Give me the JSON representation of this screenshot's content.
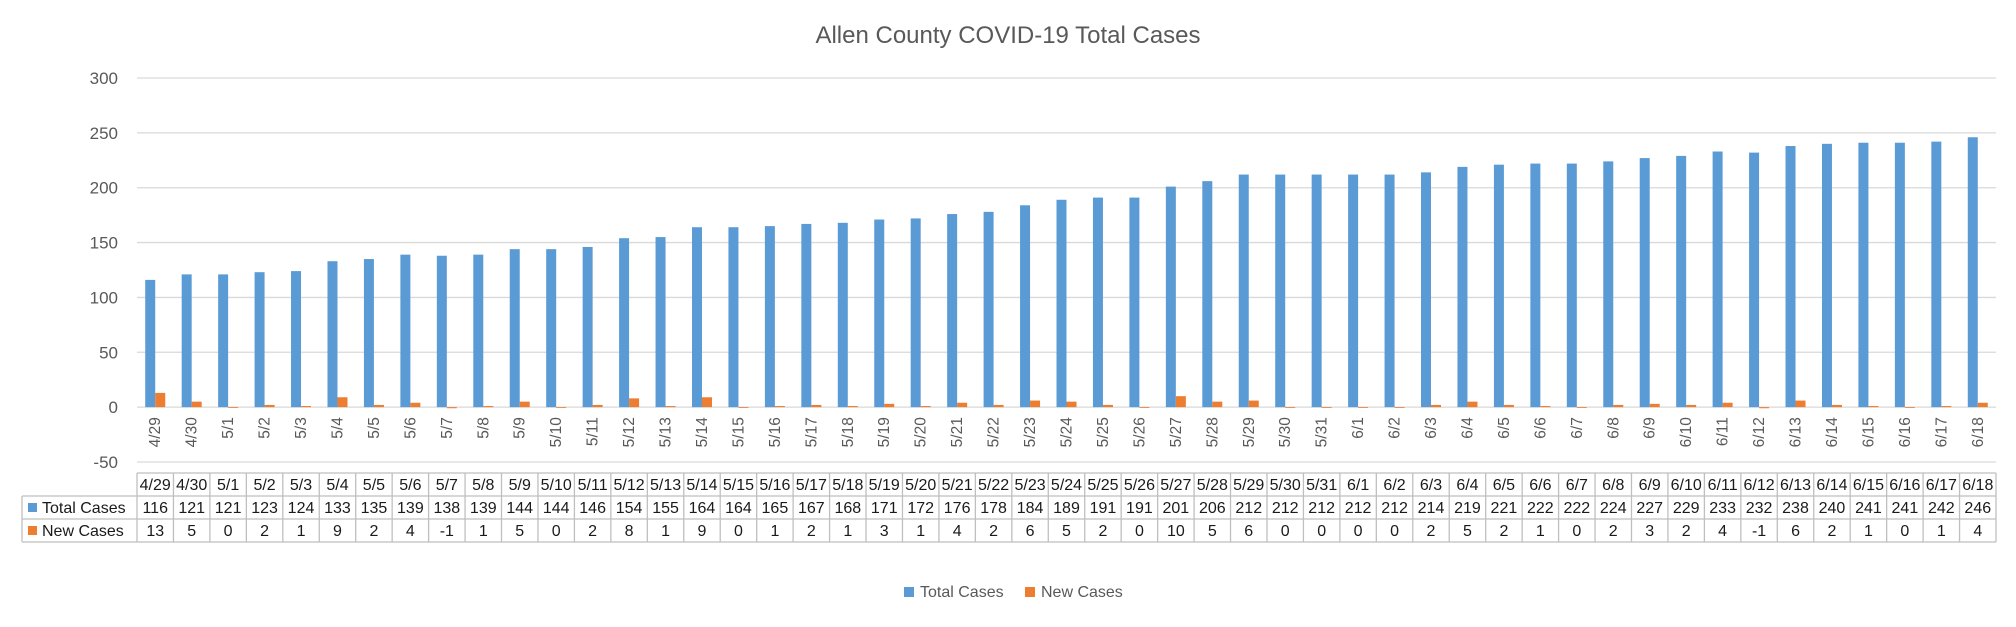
{
  "colors": {
    "total": "#5b9bd5",
    "new": "#ed7d31",
    "grid": "#d9d9d9",
    "table_border": "#bfbfbf"
  },
  "chart_data": {
    "type": "bar",
    "title": "Allen County COVID-19 Total Cases",
    "xlabel": "",
    "ylabel": "",
    "ylim": [
      -50,
      300
    ],
    "yticks": [
      -50,
      0,
      50,
      100,
      150,
      200,
      250,
      300
    ],
    "grid": true,
    "legend_position": "bottom",
    "data_table": true,
    "categories": [
      "4/29",
      "4/30",
      "5/1",
      "5/2",
      "5/3",
      "5/4",
      "5/5",
      "5/6",
      "5/7",
      "5/8",
      "5/9",
      "5/10",
      "5/11",
      "5/12",
      "5/13",
      "5/14",
      "5/15",
      "5/16",
      "5/17",
      "5/18",
      "5/19",
      "5/20",
      "5/21",
      "5/22",
      "5/23",
      "5/24",
      "5/25",
      "5/26",
      "5/27",
      "5/28",
      "5/29",
      "5/30",
      "5/31",
      "6/1",
      "6/2",
      "6/3",
      "6/4",
      "6/5",
      "6/6",
      "6/7",
      "6/8",
      "6/9",
      "6/10",
      "6/11",
      "6/12",
      "6/13",
      "6/14",
      "6/15",
      "6/16",
      "6/17",
      "6/18"
    ],
    "series": [
      {
        "name": "Total Cases",
        "color": "#5b9bd5",
        "values": [
          116,
          121,
          121,
          123,
          124,
          133,
          135,
          139,
          138,
          139,
          144,
          144,
          146,
          154,
          155,
          164,
          164,
          165,
          167,
          168,
          171,
          172,
          176,
          178,
          184,
          189,
          191,
          191,
          201,
          206,
          212,
          212,
          212,
          212,
          212,
          214,
          219,
          221,
          222,
          222,
          224,
          227,
          229,
          233,
          232,
          238,
          240,
          241,
          241,
          242,
          246
        ]
      },
      {
        "name": "New Cases",
        "color": "#ed7d31",
        "values": [
          13,
          5,
          0,
          2,
          1,
          9,
          2,
          4,
          -1,
          1,
          5,
          0,
          2,
          8,
          1,
          9,
          0,
          1,
          2,
          1,
          3,
          1,
          4,
          2,
          6,
          5,
          2,
          0,
          10,
          5,
          6,
          0,
          0,
          0,
          0,
          2,
          5,
          2,
          1,
          0,
          2,
          3,
          2,
          4,
          -1,
          6,
          2,
          1,
          0,
          1,
          4
        ]
      }
    ]
  }
}
